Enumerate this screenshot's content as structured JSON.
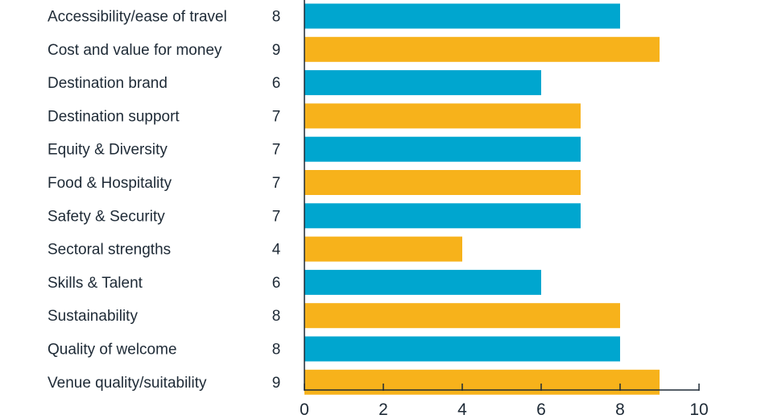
{
  "chart_data": {
    "type": "bar",
    "orientation": "horizontal",
    "title": "",
    "xlabel": "",
    "ylabel": "",
    "xlim": [
      0,
      10
    ],
    "x_ticks": [
      0,
      2,
      4,
      6,
      8,
      10
    ],
    "grid": false,
    "legend": "none",
    "colors": [
      "#00a6cf",
      "#f7b21b"
    ],
    "axis_color": "#1e2a36",
    "categories": [
      "Accessibility/ease of travel",
      "Cost and value for money",
      "Destination brand",
      "Destination support",
      "Equity & Diversity",
      "Food & Hospitality",
      "Safety & Security",
      "Sectoral strengths",
      "Skills & Talent",
      "Sustainability",
      "Quality of welcome",
      "Venue quality/suitability"
    ],
    "values": [
      8,
      9,
      6,
      7,
      7,
      7,
      7,
      4,
      6,
      8,
      8,
      9
    ]
  }
}
